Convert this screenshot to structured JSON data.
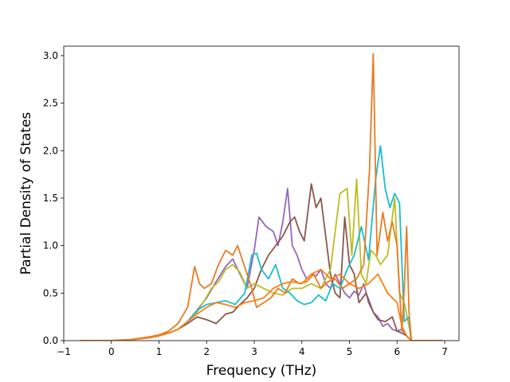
{
  "chart_data": {
    "type": "line",
    "title": "",
    "xlabel": "Frequency (THz)",
    "ylabel": "Partial Density of States",
    "xlim": [
      -1.0,
      7.3
    ],
    "ylim": [
      0.0,
      3.1
    ],
    "xticks": [
      -1,
      0,
      1,
      2,
      3,
      4,
      5,
      6,
      7
    ],
    "xtick_labels": [
      "−1",
      "0",
      "1",
      "2",
      "3",
      "4",
      "5",
      "6",
      "7"
    ],
    "yticks": [
      0.0,
      0.5,
      1.0,
      1.5,
      2.0,
      2.5,
      3.0
    ],
    "ytick_labels": [
      "0.0",
      "0.5",
      "1.0",
      "1.5",
      "2.0",
      "2.5",
      "3.0"
    ],
    "grid": false,
    "legend": "none",
    "series": [
      {
        "color": "#9467bd",
        "x": [
          -0.65,
          0.0,
          0.4,
          0.8,
          1.0,
          1.2,
          1.4,
          1.6,
          1.8,
          2.0,
          2.2,
          2.4,
          2.55,
          2.7,
          2.85,
          3.0,
          3.1,
          3.25,
          3.4,
          3.5,
          3.6,
          3.7,
          3.8,
          3.9,
          4.0,
          4.1,
          4.2,
          4.3,
          4.4,
          4.5,
          4.6,
          4.7,
          4.8,
          4.9,
          5.0,
          5.1,
          5.2,
          5.3,
          5.4,
          5.5,
          5.6,
          5.7,
          5.8,
          5.9,
          6.0,
          6.1,
          6.2,
          6.3,
          6.95
        ],
        "y": [
          0.0,
          0.0,
          0.01,
          0.03,
          0.05,
          0.08,
          0.12,
          0.2,
          0.32,
          0.45,
          0.62,
          0.78,
          0.86,
          0.7,
          0.55,
          0.95,
          1.3,
          1.2,
          1.15,
          1.0,
          1.25,
          1.6,
          1.0,
          0.9,
          0.75,
          0.65,
          0.7,
          0.68,
          0.75,
          0.6,
          0.55,
          0.7,
          0.6,
          0.5,
          0.45,
          0.52,
          0.48,
          0.6,
          0.4,
          0.3,
          0.25,
          0.15,
          0.18,
          0.12,
          0.1,
          0.12,
          0.05,
          0.0,
          0.0
        ]
      },
      {
        "color": "#8c564b",
        "x": [
          -0.65,
          0.0,
          0.4,
          0.8,
          1.0,
          1.2,
          1.4,
          1.6,
          1.8,
          2.0,
          2.2,
          2.4,
          2.55,
          2.7,
          2.85,
          3.0,
          3.15,
          3.3,
          3.45,
          3.6,
          3.75,
          3.85,
          3.95,
          4.05,
          4.2,
          4.3,
          4.4,
          4.5,
          4.6,
          4.7,
          4.8,
          4.9,
          5.0,
          5.1,
          5.2,
          5.35,
          5.5,
          5.6,
          5.75,
          5.9,
          6.0,
          6.1,
          6.2,
          6.3,
          6.95
        ],
        "y": [
          0.0,
          0.0,
          0.01,
          0.03,
          0.05,
          0.08,
          0.12,
          0.18,
          0.25,
          0.22,
          0.18,
          0.28,
          0.3,
          0.38,
          0.45,
          0.55,
          0.75,
          0.9,
          1.0,
          1.1,
          1.25,
          1.3,
          1.15,
          1.05,
          1.65,
          1.4,
          1.5,
          1.1,
          0.7,
          0.5,
          0.45,
          1.3,
          0.8,
          0.7,
          0.4,
          0.5,
          0.3,
          0.22,
          0.2,
          0.25,
          0.1,
          0.08,
          0.05,
          0.0,
          0.0
        ]
      },
      {
        "color": "#bcbd22",
        "x": [
          -0.65,
          0.0,
          0.4,
          0.8,
          1.0,
          1.2,
          1.4,
          1.6,
          1.8,
          1.95,
          2.1,
          2.25,
          2.4,
          2.55,
          2.7,
          2.85,
          3.0,
          3.2,
          3.4,
          3.6,
          3.8,
          4.0,
          4.2,
          4.4,
          4.6,
          4.8,
          4.95,
          5.05,
          5.15,
          5.25,
          5.35,
          5.45,
          5.55,
          5.65,
          5.8,
          5.95,
          6.05,
          6.15,
          6.25,
          6.3,
          6.95
        ],
        "y": [
          0.0,
          0.0,
          0.01,
          0.03,
          0.05,
          0.08,
          0.12,
          0.2,
          0.3,
          0.42,
          0.55,
          0.62,
          0.75,
          0.8,
          0.72,
          0.55,
          0.6,
          0.55,
          0.5,
          0.48,
          0.55,
          0.55,
          0.6,
          0.55,
          0.75,
          1.55,
          1.6,
          0.9,
          1.7,
          0.7,
          0.6,
          0.95,
          0.9,
          0.8,
          0.9,
          1.5,
          0.5,
          0.4,
          0.15,
          0.0,
          0.0
        ]
      },
      {
        "color": "#17becf",
        "x": [
          -0.65,
          0.0,
          0.4,
          0.8,
          1.0,
          1.2,
          1.4,
          1.6,
          1.8,
          2.0,
          2.2,
          2.4,
          2.6,
          2.8,
          2.95,
          3.05,
          3.15,
          3.3,
          3.45,
          3.6,
          3.75,
          3.9,
          4.05,
          4.2,
          4.35,
          4.5,
          4.65,
          4.8,
          4.95,
          5.1,
          5.25,
          5.4,
          5.55,
          5.65,
          5.75,
          5.85,
          5.95,
          6.05,
          6.15,
          6.25,
          6.3,
          6.95
        ],
        "y": [
          0.0,
          0.0,
          0.01,
          0.03,
          0.05,
          0.08,
          0.12,
          0.2,
          0.32,
          0.38,
          0.4,
          0.42,
          0.38,
          0.5,
          0.9,
          0.92,
          0.75,
          0.65,
          0.8,
          0.55,
          0.5,
          0.42,
          0.38,
          0.4,
          0.48,
          0.42,
          0.6,
          0.55,
          0.75,
          0.9,
          1.2,
          0.85,
          1.7,
          2.05,
          1.6,
          1.4,
          1.55,
          1.45,
          0.2,
          0.25,
          0.0,
          0.0
        ]
      },
      {
        "color": "#e87b23",
        "x": [
          -0.65,
          0.0,
          0.4,
          0.8,
          1.0,
          1.2,
          1.4,
          1.6,
          1.75,
          1.85,
          1.95,
          2.1,
          2.25,
          2.4,
          2.55,
          2.65,
          2.75,
          2.85,
          2.95,
          3.05,
          3.2,
          3.35,
          3.5,
          3.65,
          3.8,
          3.95,
          4.1,
          4.25,
          4.4,
          4.55,
          4.7,
          4.85,
          5.0,
          5.15,
          5.3,
          5.42,
          5.5,
          5.58,
          5.7,
          5.8,
          5.9,
          6.0,
          6.1,
          6.15,
          6.2,
          6.25,
          6.3,
          6.95
        ],
        "y": [
          0.0,
          0.0,
          0.01,
          0.04,
          0.06,
          0.1,
          0.18,
          0.35,
          0.78,
          0.6,
          0.55,
          0.6,
          0.8,
          0.95,
          0.9,
          1.0,
          0.85,
          0.7,
          0.55,
          0.35,
          0.4,
          0.45,
          0.55,
          0.5,
          0.65,
          0.6,
          0.62,
          0.7,
          0.55,
          0.62,
          0.65,
          0.55,
          0.6,
          0.65,
          0.8,
          1.8,
          3.02,
          0.9,
          1.35,
          1.05,
          1.25,
          1.0,
          0.1,
          0.55,
          1.2,
          0.3,
          0.0,
          0.0
        ]
      },
      {
        "color": "#ff7f0e",
        "x": [
          -0.65,
          0.0,
          0.4,
          0.8,
          1.0,
          1.2,
          1.4,
          1.6,
          1.8,
          2.0,
          2.2,
          2.4,
          2.6,
          2.8,
          3.0,
          3.2,
          3.4,
          3.6,
          3.8,
          4.0,
          4.2,
          4.4,
          4.6,
          4.8,
          5.0,
          5.2,
          5.4,
          5.6,
          5.8,
          6.0,
          6.1,
          6.2,
          6.3,
          6.95
        ],
        "y": [
          0.0,
          0.0,
          0.01,
          0.03,
          0.05,
          0.08,
          0.12,
          0.2,
          0.28,
          0.35,
          0.4,
          0.38,
          0.35,
          0.4,
          0.42,
          0.45,
          0.55,
          0.6,
          0.62,
          0.6,
          0.7,
          0.75,
          0.65,
          0.7,
          0.6,
          0.55,
          0.6,
          0.7,
          0.5,
          0.4,
          0.15,
          0.05,
          0.0,
          0.0
        ]
      }
    ]
  }
}
